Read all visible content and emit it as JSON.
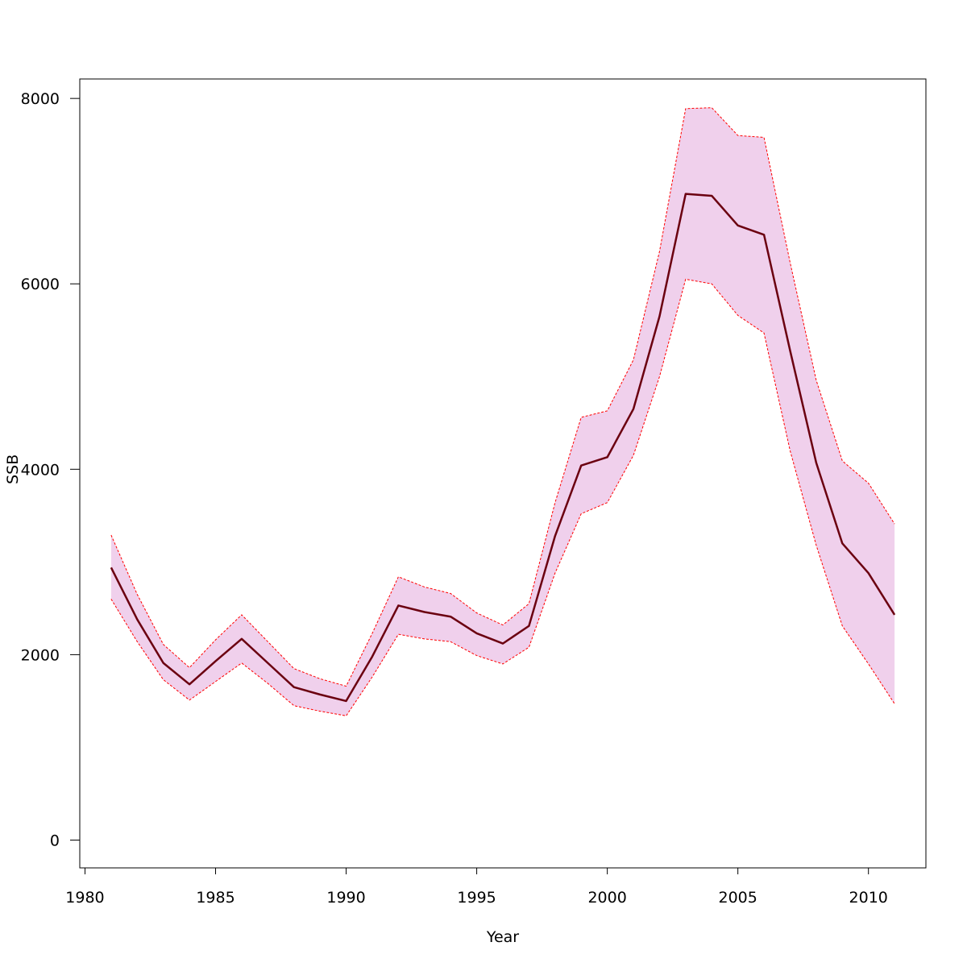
{
  "chart_data": {
    "type": "line",
    "title": "",
    "xlabel": "Year",
    "ylabel": "SSB",
    "xlim": [
      1979.8,
      2012.2
    ],
    "ylim": [
      -300,
      8210
    ],
    "x_ticks": [
      1980,
      1985,
      1990,
      1995,
      2000,
      2005,
      2010
    ],
    "y_ticks": [
      0,
      2000,
      4000,
      6000,
      8000
    ],
    "x_tick_labels": [
      "1980",
      "1985",
      "1990",
      "1995",
      "2000",
      "2005",
      "2010"
    ],
    "y_tick_labels": [
      "0",
      "2000",
      "4000",
      "6000",
      "8000"
    ],
    "grid": false,
    "legend": "none",
    "colors": {
      "line": "#6b0010",
      "band_fill": "#f0d0ec",
      "band_edge": "#ff0000"
    },
    "x": [
      1981,
      1982,
      1983,
      1984,
      1985,
      1986,
      1987,
      1988,
      1989,
      1990,
      1991,
      1992,
      1993,
      1994,
      1995,
      1996,
      1997,
      1998,
      1999,
      2000,
      2001,
      2002,
      2003,
      2004,
      2005,
      2006,
      2007,
      2008,
      2009,
      2010,
      2011
    ],
    "series": [
      {
        "values": [
          2940,
          2380,
          1910,
          1680,
          1930,
          2170,
          1910,
          1650,
          1570,
          1500,
          1980,
          2530,
          2460,
          2410,
          2230,
          2120,
          2310,
          3280,
          4040,
          4130,
          4650,
          5650,
          6970,
          6950,
          6630,
          6530,
          5280,
          4070,
          3200,
          2880,
          2430
        ]
      },
      {
        "values": [
          3290,
          2650,
          2110,
          1860,
          2160,
          2430,
          2140,
          1850,
          1740,
          1660,
          2230,
          2840,
          2730,
          2660,
          2450,
          2320,
          2550,
          3640,
          4560,
          4630,
          5180,
          6350,
          7890,
          7900,
          7600,
          7580,
          6230,
          4960,
          4090,
          3850,
          3410
        ]
      },
      {
        "values": [
          2600,
          2140,
          1730,
          1510,
          1710,
          1910,
          1690,
          1450,
          1390,
          1340,
          1760,
          2220,
          2170,
          2140,
          1990,
          1900,
          2080,
          2880,
          3520,
          3640,
          4150,
          5000,
          6050,
          6000,
          5660,
          5470,
          4200,
          3180,
          2310,
          1900,
          1470
        ]
      }
    ]
  }
}
